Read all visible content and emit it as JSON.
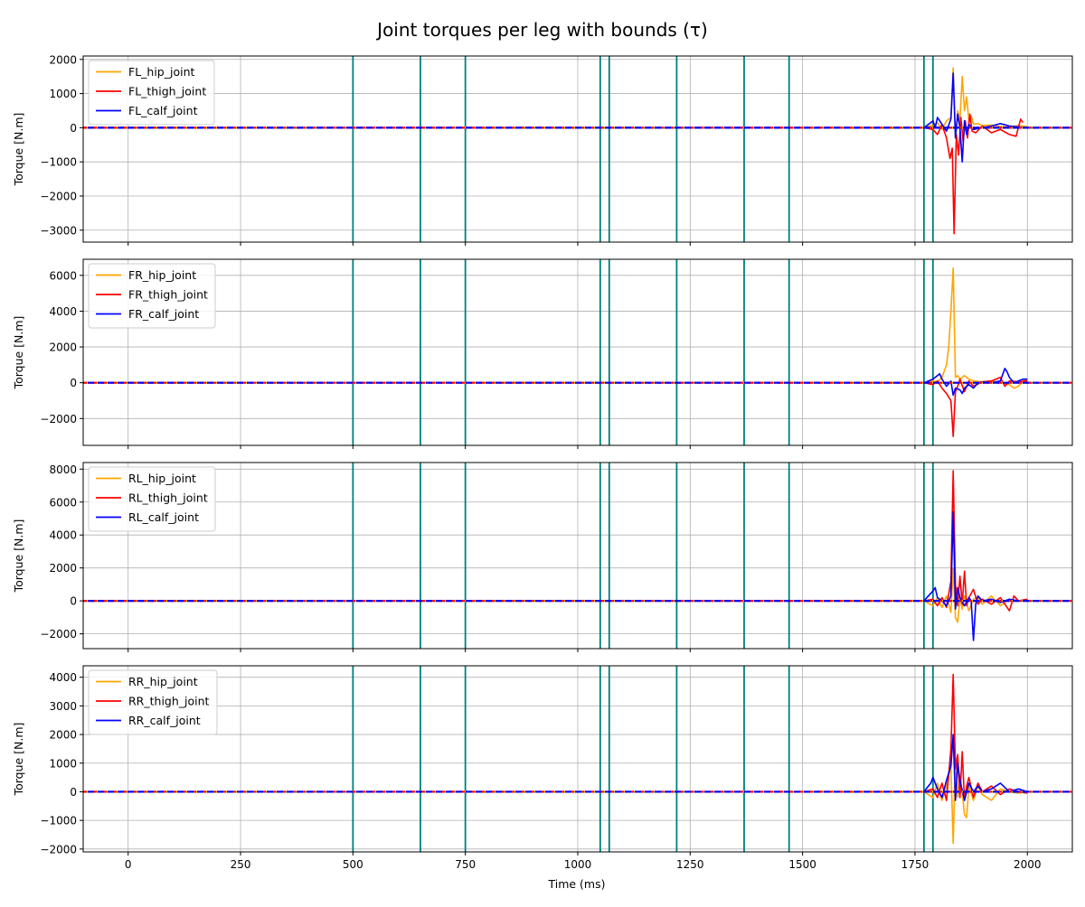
{
  "figure": {
    "title": "Joint torques per leg with bounds (τ)",
    "xlabel": "Time (ms)"
  },
  "colors": {
    "hip": "#ffa500",
    "thigh": "#ff0000",
    "calf": "#0000ff",
    "event_line": "#008080",
    "grid": "#b0b0b0"
  },
  "chart_data": [
    {
      "type": "line",
      "title": "",
      "xlabel": "",
      "ylabel": "Torque [N.m]",
      "xlim": [
        -100,
        2100
      ],
      "ylim": [
        -3350,
        2100
      ],
      "xticks": [
        0,
        250,
        500,
        750,
        1000,
        1250,
        1500,
        1750,
        2000
      ],
      "yticks": [
        -3000,
        -2000,
        -1000,
        0,
        1000,
        2000
      ],
      "ytick_labels": [
        "−3000",
        "−2000",
        "−1000",
        "0",
        "1000",
        "2000"
      ],
      "grid": true,
      "legend_position": "upper-left",
      "event_lines_x": [
        500,
        650,
        750,
        1050,
        1070,
        1220,
        1370,
        1470,
        1770,
        1790
      ],
      "bound_value": 0,
      "series": [
        {
          "name": "FL_hip_joint",
          "color": "#ffa500",
          "x": [
            -100,
            1770,
            1790,
            1800,
            1810,
            1820,
            1830,
            1835,
            1840,
            1845,
            1850,
            1855,
            1860,
            1865,
            1870,
            1875,
            1880,
            1890,
            1900,
            1920,
            1940,
            1960,
            1980,
            2000
          ],
          "y": [
            0,
            0,
            80,
            150,
            -50,
            200,
            300,
            1750,
            -300,
            500,
            200,
            1500,
            500,
            900,
            200,
            350,
            100,
            120,
            60,
            80,
            30,
            20,
            60,
            30
          ]
        },
        {
          "name": "FL_thigh_joint",
          "color": "#ff0000",
          "x": [
            -100,
            1770,
            1790,
            1800,
            1810,
            1820,
            1828,
            1833,
            1837,
            1842,
            1847,
            1852,
            1857,
            1862,
            1867,
            1872,
            1877,
            1885,
            1900,
            1920,
            1940,
            1960,
            1975,
            1985,
            1990
          ],
          "y": [
            0,
            0,
            -50,
            -200,
            100,
            -300,
            -900,
            -600,
            -3100,
            -200,
            -800,
            300,
            -400,
            200,
            -300,
            400,
            -100,
            -150,
            50,
            -150,
            -50,
            -200,
            -250,
            250,
            150
          ]
        },
        {
          "name": "FL_calf_joint",
          "color": "#0000ff",
          "x": [
            -100,
            1770,
            1785,
            1790,
            1795,
            1800,
            1810,
            1820,
            1830,
            1835,
            1840,
            1845,
            1850,
            1855,
            1860,
            1865,
            1870,
            1880,
            1900,
            1920,
            1940,
            1960,
            2000
          ],
          "y": [
            0,
            0,
            150,
            200,
            0,
            300,
            100,
            -100,
            250,
            1600,
            -300,
            400,
            0,
            -1000,
            200,
            -200,
            100,
            -50,
            0,
            50,
            120,
            50,
            0
          ]
        }
      ]
    },
    {
      "type": "line",
      "title": "",
      "xlabel": "",
      "ylabel": "Torque [N.m]",
      "xlim": [
        -100,
        2100
      ],
      "ylim": [
        -3500,
        6900
      ],
      "xticks": [
        0,
        250,
        500,
        750,
        1000,
        1250,
        1500,
        1750,
        2000
      ],
      "yticks": [
        -2000,
        0,
        2000,
        4000,
        6000
      ],
      "ytick_labels": [
        "−2000",
        "0",
        "2000",
        "4000",
        "6000"
      ],
      "grid": true,
      "legend_position": "upper-left",
      "event_lines_x": [
        500,
        650,
        750,
        1050,
        1070,
        1220,
        1370,
        1470,
        1770,
        1790
      ],
      "bound_value": 0,
      "series": [
        {
          "name": "FR_hip_joint",
          "color": "#ffa500",
          "x": [
            -100,
            1770,
            1790,
            1800,
            1810,
            1820,
            1825,
            1830,
            1835,
            1840,
            1845,
            1850,
            1860,
            1870,
            1880,
            1900,
            1920,
            1940,
            1960,
            1970,
            1980,
            1990,
            2000
          ],
          "y": [
            0,
            0,
            100,
            50,
            300,
            1000,
            2000,
            4000,
            6400,
            300,
            400,
            200,
            400,
            200,
            100,
            50,
            100,
            0,
            -100,
            -300,
            -200,
            100,
            200
          ]
        },
        {
          "name": "FR_thigh_joint",
          "color": "#ff0000",
          "x": [
            -100,
            1770,
            1790,
            1800,
            1810,
            1820,
            1830,
            1835,
            1840,
            1845,
            1850,
            1860,
            1870,
            1880,
            1900,
            1920,
            1940,
            1950,
            1960,
            1980,
            2000
          ],
          "y": [
            0,
            0,
            -100,
            100,
            -300,
            -600,
            -1000,
            -3000,
            -500,
            -200,
            200,
            -500,
            100,
            -200,
            50,
            100,
            300,
            -200,
            100,
            50,
            100
          ]
        },
        {
          "name": "FR_calf_joint",
          "color": "#0000ff",
          "x": [
            -100,
            1770,
            1790,
            1800,
            1805,
            1810,
            1820,
            1830,
            1835,
            1840,
            1850,
            1855,
            1860,
            1870,
            1880,
            1890,
            1900,
            1920,
            1940,
            1950,
            1955,
            1960,
            1970,
            1980,
            1990,
            2000
          ],
          "y": [
            0,
            0,
            200,
            400,
            500,
            200,
            -200,
            100,
            -700,
            -300,
            -400,
            -600,
            -300,
            -100,
            -300,
            0,
            50,
            0,
            100,
            800,
            600,
            300,
            0,
            100,
            200,
            200
          ]
        }
      ]
    },
    {
      "type": "line",
      "title": "",
      "xlabel": "",
      "ylabel": "Torque [N.m]",
      "xlim": [
        -100,
        2100
      ],
      "ylim": [
        -2900,
        8400
      ],
      "xticks": [
        0,
        250,
        500,
        750,
        1000,
        1250,
        1500,
        1750,
        2000
      ],
      "yticks": [
        -2000,
        0,
        2000,
        4000,
        6000,
        8000
      ],
      "ytick_labels": [
        "−2000",
        "0",
        "2000",
        "4000",
        "6000",
        "8000"
      ],
      "grid": true,
      "legend_position": "upper-left",
      "event_lines_x": [
        500,
        650,
        750,
        1050,
        1070,
        1220,
        1370,
        1470,
        1770,
        1790
      ],
      "bound_value": 0,
      "series": [
        {
          "name": "RL_hip_joint",
          "color": "#ffa500",
          "x": [
            -100,
            1770,
            1790,
            1800,
            1810,
            1820,
            1830,
            1835,
            1840,
            1845,
            1850,
            1855,
            1860,
            1870,
            1880,
            1890,
            1900,
            1920,
            1940,
            1960,
            1980,
            2000
          ],
          "y": [
            0,
            0,
            -300,
            200,
            -400,
            300,
            -700,
            2000,
            -1000,
            -1300,
            200,
            -500,
            300,
            -600,
            100,
            200,
            -200,
            300,
            -300,
            100,
            0,
            100
          ]
        },
        {
          "name": "RL_thigh_joint",
          "color": "#ff0000",
          "x": [
            -100,
            1770,
            1790,
            1800,
            1810,
            1820,
            1830,
            1835,
            1840,
            1845,
            1850,
            1855,
            1860,
            1865,
            1870,
            1880,
            1890,
            1900,
            1920,
            1940,
            1960,
            1970,
            1980,
            2000
          ],
          "y": [
            0,
            0,
            100,
            -300,
            200,
            -400,
            1200,
            7900,
            1000,
            -300,
            1500,
            -200,
            1800,
            -300,
            200,
            700,
            -200,
            100,
            -200,
            200,
            -600,
            300,
            0,
            100
          ]
        },
        {
          "name": "RL_calf_joint",
          "color": "#0000ff",
          "x": [
            -100,
            1770,
            1790,
            1795,
            1800,
            1810,
            1820,
            1830,
            1835,
            1840,
            1845,
            1850,
            1860,
            1870,
            1875,
            1880,
            1885,
            1890,
            1900,
            1920,
            1940,
            1960,
            1980,
            2000
          ],
          "y": [
            0,
            0,
            600,
            800,
            200,
            0,
            -300,
            300,
            5400,
            -500,
            800,
            200,
            -300,
            200,
            0,
            -2400,
            -200,
            300,
            0,
            100,
            -100,
            100,
            0,
            0
          ]
        }
      ]
    },
    {
      "type": "line",
      "title": "",
      "xlabel": "Time (ms)",
      "ylabel": "Torque [N.m]",
      "xlim": [
        -100,
        2100
      ],
      "ylim": [
        -2100,
        4400
      ],
      "xticks": [
        0,
        250,
        500,
        750,
        1000,
        1250,
        1500,
        1750,
        2000
      ],
      "xtick_labels": [
        "0",
        "250",
        "500",
        "750",
        "1000",
        "1250",
        "1500",
        "1750",
        "2000"
      ],
      "yticks": [
        -2000,
        -1000,
        0,
        1000,
        2000,
        3000,
        4000
      ],
      "ytick_labels": [
        "−2000",
        "−1000",
        "0",
        "1000",
        "2000",
        "3000",
        "4000"
      ],
      "grid": true,
      "legend_position": "upper-left",
      "event_lines_x": [
        500,
        650,
        750,
        1050,
        1070,
        1220,
        1370,
        1470,
        1770,
        1790
      ],
      "bound_value": 0,
      "series": [
        {
          "name": "RR_hip_joint",
          "color": "#ffa500",
          "x": [
            -100,
            1770,
            1790,
            1800,
            1810,
            1820,
            1830,
            1835,
            1840,
            1845,
            1850,
            1855,
            1860,
            1865,
            1870,
            1880,
            1890,
            1900,
            1920,
            1940,
            1960,
            1980,
            2000
          ],
          "y": [
            0,
            0,
            -200,
            300,
            -300,
            200,
            900,
            -1800,
            1200,
            -200,
            500,
            0,
            -800,
            -900,
            200,
            -300,
            200,
            -100,
            -300,
            100,
            0,
            -50,
            0
          ]
        },
        {
          "name": "RR_thigh_joint",
          "color": "#ff0000",
          "x": [
            -100,
            1770,
            1790,
            1800,
            1810,
            1820,
            1830,
            1835,
            1840,
            1845,
            1850,
            1855,
            1860,
            1865,
            1870,
            1880,
            1890,
            1900,
            1920,
            1940,
            1960,
            1980,
            2000
          ],
          "y": [
            0,
            0,
            100,
            -200,
            300,
            -300,
            1500,
            4100,
            800,
            1300,
            -200,
            1400,
            -300,
            200,
            500,
            -200,
            300,
            0,
            200,
            -100,
            100,
            0,
            -50
          ]
        },
        {
          "name": "RR_calf_joint",
          "color": "#0000ff",
          "x": [
            -100,
            1770,
            1785,
            1790,
            1800,
            1810,
            1820,
            1830,
            1835,
            1840,
            1845,
            1850,
            1860,
            1870,
            1880,
            1890,
            1900,
            1920,
            1940,
            1960,
            1980,
            2000
          ],
          "y": [
            0,
            0,
            300,
            500,
            100,
            -200,
            400,
            900,
            2000,
            -300,
            1000,
            400,
            -300,
            300,
            0,
            200,
            0,
            100,
            300,
            0,
            100,
            0
          ]
        }
      ]
    }
  ]
}
